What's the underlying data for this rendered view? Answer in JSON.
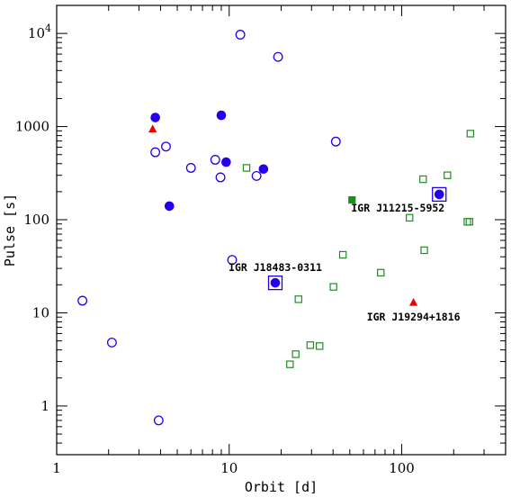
{
  "chart_data": {
    "type": "scatter",
    "title": "",
    "xlabel": "Orbit [d]",
    "ylabel": "Pulse [s]",
    "xscale": "log",
    "yscale": "log",
    "xlim": [
      1,
      400
    ],
    "ylim": [
      0.3,
      20000
    ],
    "grid": false,
    "xticks": [
      {
        "value": 1,
        "label": "1"
      },
      {
        "value": 10,
        "label": "10"
      },
      {
        "value": 100,
        "label": "100"
      }
    ],
    "yticks": [
      {
        "value": 1,
        "label": "1"
      },
      {
        "value": 10,
        "label": "10"
      },
      {
        "value": 100,
        "label": "100"
      },
      {
        "value": 1000,
        "label": "1000"
      },
      {
        "value": 10000,
        "label": "10",
        "sup": "4"
      }
    ],
    "colors": {
      "blue": "#2200ee",
      "green": "#228b22",
      "red": "#ee0000"
    },
    "series": [
      {
        "marker": "open-circle",
        "color": "#2200ee",
        "points": [
          [
            1.41,
            13.5
          ],
          [
            2.09,
            4.8
          ],
          [
            3.73,
            530
          ],
          [
            3.9,
            0.7
          ],
          [
            4.3,
            610
          ],
          [
            6.0,
            360
          ],
          [
            8.3,
            440
          ],
          [
            8.9,
            285
          ],
          [
            10.4,
            37
          ],
          [
            11.6,
            9700
          ],
          [
            14.4,
            295
          ],
          [
            19.2,
            5600
          ],
          [
            41.5,
            690
          ]
        ]
      },
      {
        "marker": "filled-circle",
        "color": "#2200ee",
        "points": [
          [
            3.73,
            1250
          ],
          [
            4.5,
            140
          ],
          [
            9.0,
            1320
          ],
          [
            9.6,
            415
          ],
          [
            15.8,
            350
          ],
          [
            18.5,
            21
          ],
          [
            165,
            187
          ]
        ]
      },
      {
        "marker": "open-square",
        "color": "#228b22",
        "points": [
          [
            12.6,
            360
          ],
          [
            22.5,
            2.8
          ],
          [
            24.3,
            3.6
          ],
          [
            25.2,
            14
          ],
          [
            29.5,
            4.5
          ],
          [
            33.4,
            4.4
          ],
          [
            40.2,
            19
          ],
          [
            45.6,
            42
          ],
          [
            75.6,
            27
          ],
          [
            111,
            105
          ],
          [
            133,
            272
          ],
          [
            135,
            47
          ],
          [
            184,
            300
          ],
          [
            240,
            95
          ],
          [
            247,
            95
          ],
          [
            250,
            840
          ]
        ]
      },
      {
        "marker": "filled-square",
        "color": "#228b22",
        "points": [
          [
            51.5,
            163
          ]
        ]
      },
      {
        "marker": "filled-triangle",
        "color": "#ee0000",
        "points": [
          [
            3.6,
            940
          ],
          [
            117,
            12.9
          ]
        ]
      }
    ],
    "highlighted": [
      {
        "x": 18.5,
        "y": 21
      },
      {
        "x": 165,
        "y": 187
      }
    ],
    "annotations": [
      {
        "text": "IGR J18483-0311",
        "x": 18.5,
        "y": 21,
        "position": "above"
      },
      {
        "text": "IGR J11215-5952",
        "x": 165,
        "y": 187,
        "position": "below-left"
      },
      {
        "text": "IGR J19294+1816",
        "x": 117,
        "y": 12.9,
        "position": "below"
      }
    ]
  }
}
